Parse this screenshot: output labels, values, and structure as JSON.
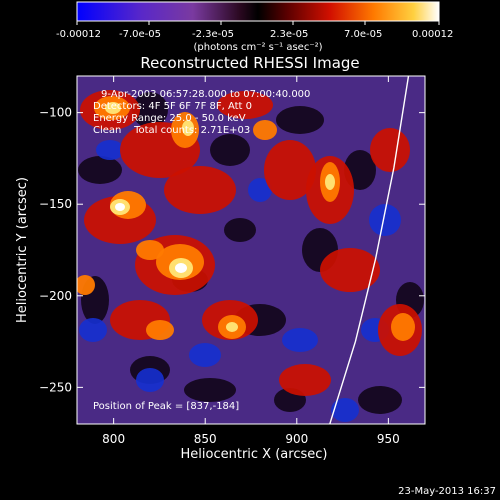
{
  "footer": {
    "date": "23-May-2013 16:37"
  },
  "colorbar": {
    "colormap": "red-temperature-diverging",
    "unit": "(photons cm⁻² s⁻¹ asec⁻²)",
    "ticks": [
      "-0.00012",
      "-7.0e-05",
      "-2.3e-05",
      "2.3e-05",
      "7.0e-05",
      "0.00012"
    ]
  },
  "chart_data": {
    "type": "heatmap",
    "title": "Reconstructed RHESSI Image",
    "xlabel": "Heliocentric X (arcsec)",
    "ylabel": "Heliocentric Y (arcsec)",
    "xlim": [
      780,
      970
    ],
    "ylim": [
      -270,
      -80
    ],
    "xticks": [
      800,
      850,
      900,
      950
    ],
    "yticks": [
      -100,
      -150,
      -200,
      -250
    ],
    "value_range": [
      -0.00012,
      0.00012
    ],
    "annotations": [
      "9-Apr-2003 06:57:28.000 to 07:00:40.000",
      "Detectors: 4F 5F 6F 7F 8F, Att 0",
      "Energy Range: 25.0 - 50.0 keV",
      "Clean    Total counts: 2.71E+03",
      "Position of Peak = [837,-184]"
    ],
    "peak": {
      "x": 837,
      "y": -184
    },
    "limb_curve": {
      "x": [
        961,
        953,
        943,
        932,
        918
      ],
      "y": [
        -80,
        -130,
        -180,
        -225,
        -270
      ]
    }
  }
}
